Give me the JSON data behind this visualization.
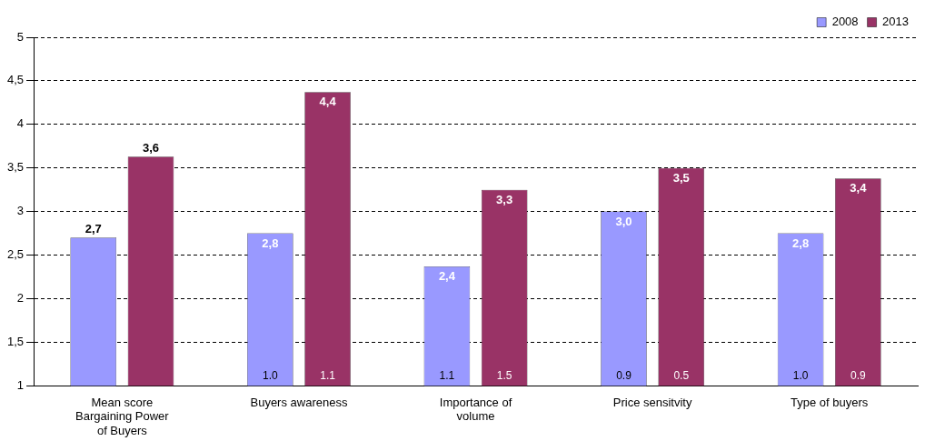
{
  "chart_data": {
    "type": "bar",
    "categories": [
      "Mean score Bargaining Power of Buyers",
      "Buyers awareness",
      "Importance of volume",
      "Price sensitvity",
      "Type of buyers"
    ],
    "series": [
      {
        "name": "2008",
        "color": "#9999ff",
        "values": [
          2.7,
          2.75,
          2.37,
          3.0,
          2.75
        ],
        "value_labels": [
          "2,7",
          "2,8",
          "2,4",
          "3,0",
          "2,8"
        ]
      },
      {
        "name": "2013",
        "color": "#993366",
        "values": [
          3.63,
          4.37,
          3.25,
          3.5,
          3.38
        ],
        "value_labels": [
          "3,6",
          "4,4",
          "3,3",
          "3,5",
          "3,4"
        ]
      }
    ],
    "ylim": [
      1,
      5
    ],
    "yticks": [
      1,
      {
        "value": 1.5,
        "label": "1,5"
      },
      2,
      {
        "value": 2.5,
        "label": "2,5"
      },
      3,
      {
        "value": 3.5,
        "label": "3,5"
      },
      4,
      {
        "value": 4.5,
        "label": "4,5"
      },
      5
    ],
    "grid": "y",
    "legend": "top right",
    "annotations": [
      "1.0",
      "1.1",
      "1.1",
      "1.5",
      "0.9",
      "0.5",
      "1.0",
      "0.9"
    ]
  }
}
